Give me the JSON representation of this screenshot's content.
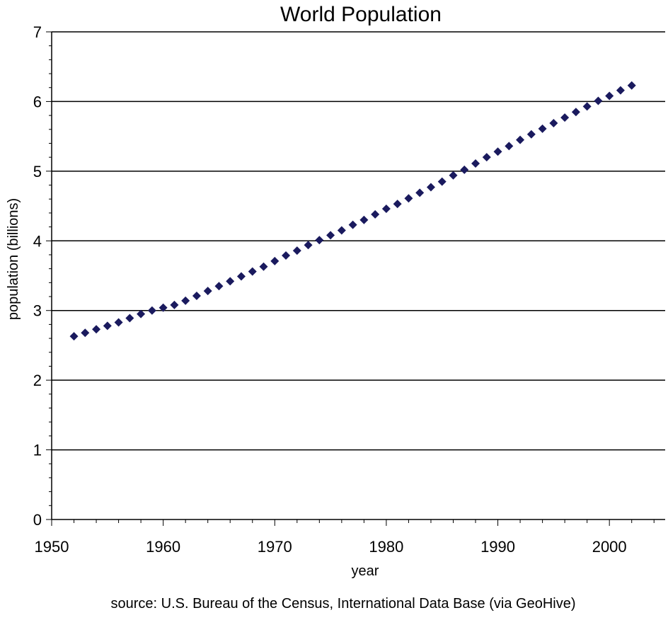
{
  "chart_data": {
    "type": "scatter",
    "title": "World Population",
    "xlabel": "year",
    "ylabel": "population (billions)",
    "source": "source: U.S. Bureau of the Census, International Data Base (via GeoHive)",
    "xlim": [
      1950,
      2005
    ],
    "ylim": [
      0,
      7
    ],
    "x_ticks": [
      "1950",
      "1960",
      "1970",
      "1980",
      "1990",
      "2000"
    ],
    "y_ticks": [
      "0",
      "1",
      "2",
      "3",
      "4",
      "5",
      "6",
      "7"
    ],
    "grid": "horizontal",
    "marker_color": "#1a1a5e",
    "series": [
      {
        "x": [
          1952,
          1953,
          1954,
          1955,
          1956,
          1957,
          1958,
          1959,
          1960,
          1961,
          1962,
          1963,
          1964,
          1965,
          1966,
          1967,
          1968,
          1969,
          1970,
          1971,
          1972,
          1973,
          1974,
          1975,
          1976,
          1977,
          1978,
          1979,
          1980,
          1981,
          1982,
          1983,
          1984,
          1985,
          1986,
          1987,
          1988,
          1989,
          1990,
          1991,
          1992,
          1993,
          1994,
          1995,
          1996,
          1997,
          1998,
          1999,
          2000,
          2001,
          2002
        ],
        "y": [
          2.63,
          2.68,
          2.73,
          2.78,
          2.83,
          2.89,
          2.95,
          3.0,
          3.04,
          3.08,
          3.14,
          3.21,
          3.28,
          3.35,
          3.42,
          3.49,
          3.56,
          3.63,
          3.71,
          3.79,
          3.86,
          3.94,
          4.01,
          4.08,
          4.15,
          4.23,
          4.3,
          4.38,
          4.46,
          4.53,
          4.61,
          4.69,
          4.77,
          4.85,
          4.94,
          5.02,
          5.11,
          5.2,
          5.28,
          5.36,
          5.45,
          5.53,
          5.61,
          5.69,
          5.77,
          5.85,
          5.93,
          6.01,
          6.08,
          6.16,
          6.23
        ]
      }
    ]
  }
}
